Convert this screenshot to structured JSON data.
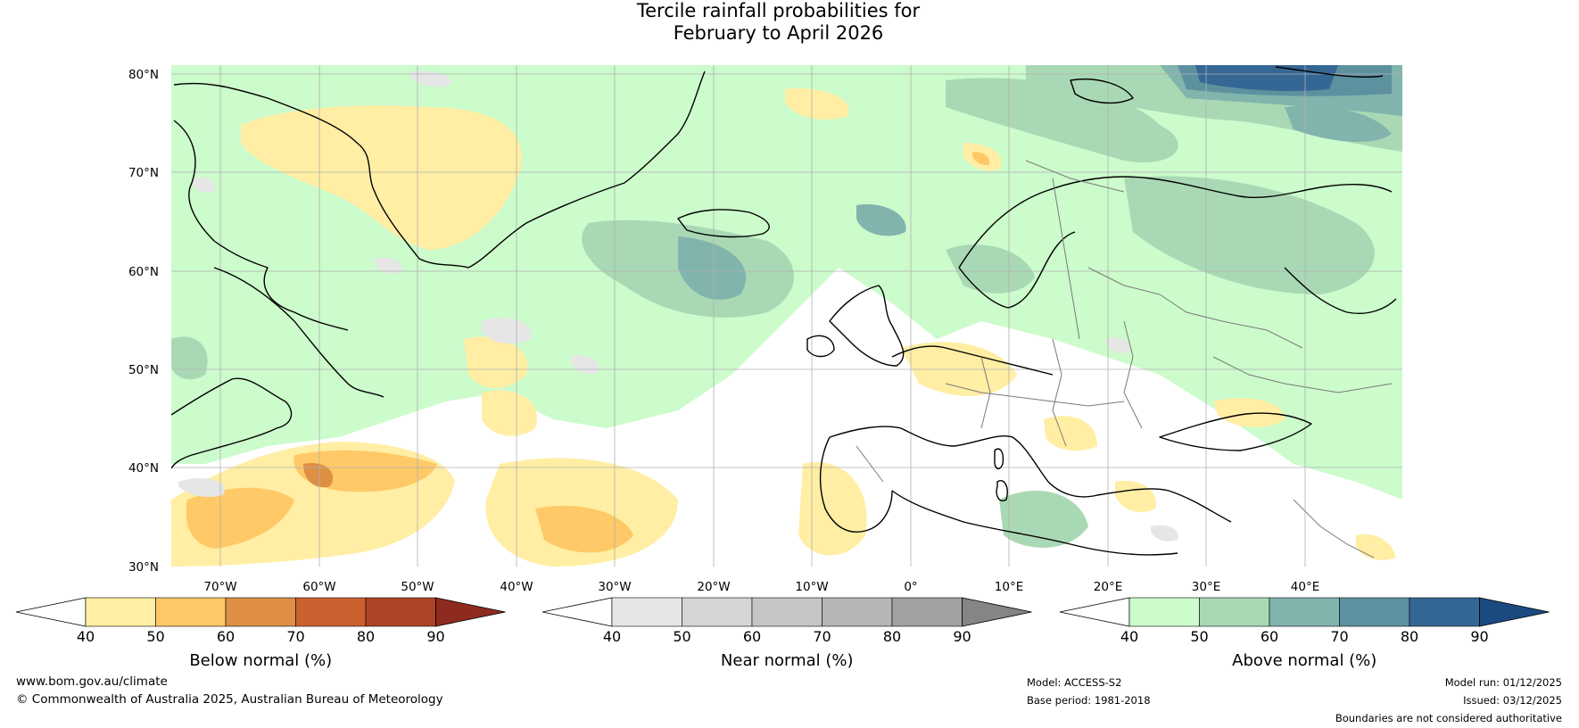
{
  "title": {
    "line1": "Tercile rainfall probabilities for",
    "line2": "February to April 2026"
  },
  "axes": {
    "lat_labels": [
      "80°N",
      "70°N",
      "60°N",
      "50°N",
      "40°N",
      "30°N"
    ],
    "lat_values": [
      80,
      70,
      60,
      50,
      40,
      30
    ],
    "lon_labels": [
      "70°W",
      "60°W",
      "50°W",
      "40°W",
      "30°W",
      "20°W",
      "10°W",
      "0°",
      "10°E",
      "20°E",
      "30°E",
      "40°E"
    ],
    "lon_values": [
      -70,
      -60,
      -50,
      -40,
      -30,
      -20,
      -10,
      0,
      10,
      20,
      30,
      40
    ],
    "lon_range": [
      -75,
      50
    ],
    "lat_range": [
      30,
      81
    ]
  },
  "colorbars": [
    {
      "id": "below",
      "title": "Below normal (%)",
      "ticks": [
        "40",
        "50",
        "60",
        "70",
        "80",
        "90"
      ],
      "colors": [
        "#ffffff",
        "#ffeea4",
        "#fec966",
        "#de8f44",
        "#cc6130",
        "#ad4427",
        "#8e2b1f"
      ]
    },
    {
      "id": "near",
      "title": "Near normal (%)",
      "ticks": [
        "40",
        "50",
        "60",
        "70",
        "80",
        "90"
      ],
      "colors": [
        "#ffffff",
        "#e6e6e6",
        "#d5d5d5",
        "#c5c5c5",
        "#b5b5b5",
        "#a1a1a1",
        "#858585"
      ]
    },
    {
      "id": "above",
      "title": "Above normal (%)",
      "ticks": [
        "40",
        "50",
        "60",
        "70",
        "80",
        "90"
      ],
      "colors": [
        "#ffffff",
        "#ccfbcc",
        "#a9d9b4",
        "#81b4ad",
        "#5d91a0",
        "#356795",
        "#1b4a80"
      ]
    }
  ],
  "footer": {
    "website": "www.bom.gov.au/climate",
    "copyright": "© Commonwealth of Australia 2025, Australian Bureau of Meteorology",
    "model": "Model: ACCESS-S2",
    "base_period": "Base period: 1981-2018",
    "model_run": "Model run: 01/12/2025",
    "issued": "Issued: 03/12/2025",
    "disclaimer": "Boundaries are not considered authoritative"
  }
}
